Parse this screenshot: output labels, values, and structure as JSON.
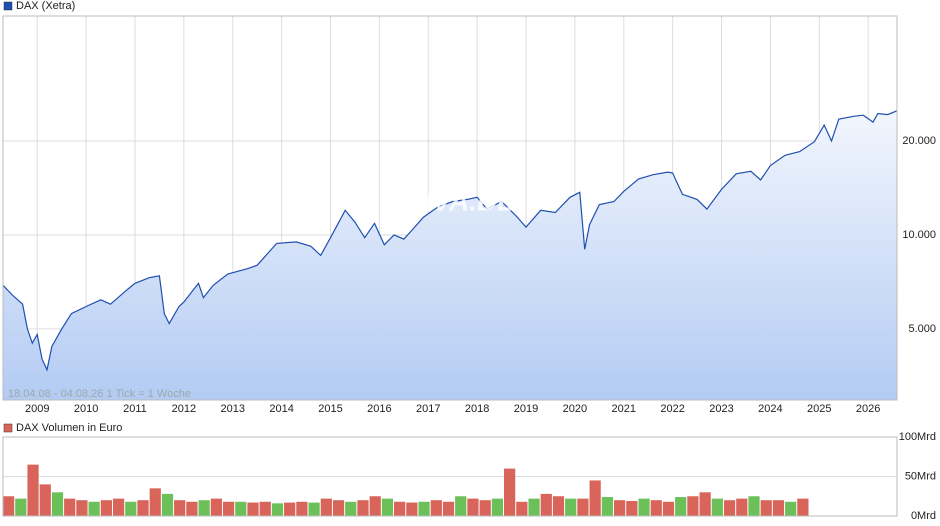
{
  "chart_data": [
    {
      "type": "line",
      "log_scale": true,
      "grid": true,
      "legend": "top-left",
      "annotations": [
        "18.04.08 - 04.08.26   1 Tick = 1 Woche",
        "ARIVA.DE"
      ],
      "series": [
        {
          "name": "DAX (Xetra)",
          "color": "#1f4fb0",
          "x": [
            2008.3,
            2008.5,
            2008.7,
            2008.8,
            2008.9,
            2009.0,
            2009.1,
            2009.2,
            2009.3,
            2009.5,
            2009.7,
            2010.0,
            2010.3,
            2010.5,
            2010.8,
            2011.0,
            2011.3,
            2011.5,
            2011.6,
            2011.7,
            2011.9,
            2012.0,
            2012.3,
            2012.4,
            2012.6,
            2012.9,
            2013.3,
            2013.5,
            2013.9,
            2014.3,
            2014.6,
            2014.8,
            2015.0,
            2015.3,
            2015.5,
            2015.7,
            2015.9,
            2016.1,
            2016.3,
            2016.5,
            2016.7,
            2016.9,
            2017.2,
            2017.5,
            2017.8,
            2018.0,
            2018.2,
            2018.5,
            2018.8,
            2019.0,
            2019.3,
            2019.6,
            2019.9,
            2020.1,
            2020.2,
            2020.3,
            2020.5,
            2020.8,
            2021.0,
            2021.3,
            2021.6,
            2021.9,
            2022.0,
            2022.2,
            2022.5,
            2022.7,
            2023.0,
            2023.3,
            2023.6,
            2023.8,
            2024.0,
            2024.3,
            2024.6,
            2024.9,
            2025.1,
            2025.25,
            2025.4,
            2025.7,
            2025.9,
            2026.1,
            2026.2,
            2026.4,
            2026.59
          ],
          "values": [
            6900,
            6400,
            6000,
            5000,
            4500,
            4800,
            4000,
            3700,
            4400,
            5000,
            5600,
            5900,
            6200,
            6000,
            6600,
            7000,
            7300,
            7400,
            5600,
            5200,
            5900,
            6100,
            7000,
            6300,
            6900,
            7500,
            7800,
            8000,
            9400,
            9500,
            9200,
            8600,
            9800,
            12000,
            11000,
            9800,
            10900,
            9300,
            10000,
            9700,
            10500,
            11400,
            12300,
            12800,
            13000,
            13200,
            12100,
            12800,
            11500,
            10600,
            12000,
            11800,
            13200,
            13700,
            9000,
            10800,
            12500,
            12800,
            13800,
            15100,
            15600,
            15900,
            15800,
            13500,
            13000,
            12100,
            14000,
            15700,
            16000,
            15000,
            16700,
            18000,
            18500,
            19900,
            22500,
            20000,
            23500,
            24000,
            24200,
            23000,
            24500,
            24300,
            25000
          ]
        }
      ],
      "xlim": [
        2008.3,
        2026.59
      ],
      "xticks": [
        2009,
        2010,
        2011,
        2012,
        2013,
        2014,
        2015,
        2016,
        2017,
        2018,
        2019,
        2020,
        2021,
        2022,
        2023,
        2024,
        2025,
        2026
      ],
      "ylim": [
        2960,
        50300
      ],
      "yticks": [
        {
          "value": 5000,
          "label": "5.000"
        },
        {
          "value": 10000,
          "label": "10.000"
        },
        {
          "value": 20000,
          "label": "20.000"
        }
      ]
    },
    {
      "type": "bar",
      "grid": true,
      "legend": "top-left",
      "series": [
        {
          "name": "DAX Volumen in Euro",
          "color": "#d9645a",
          "x": [
            2008.3,
            2008.55,
            2008.8,
            2009.05,
            2009.3,
            2009.55,
            2009.8,
            2010.05,
            2010.3,
            2010.55,
            2010.8,
            2011.05,
            2011.3,
            2011.55,
            2011.8,
            2012.05,
            2012.3,
            2012.55,
            2012.8,
            2013.05,
            2013.3,
            2013.55,
            2013.8,
            2014.05,
            2014.3,
            2014.55,
            2014.8,
            2015.05,
            2015.3,
            2015.55,
            2015.8,
            2016.05,
            2016.3,
            2016.55,
            2016.8,
            2017.05,
            2017.3,
            2017.55,
            2017.8,
            2018.05,
            2018.3,
            2018.55,
            2018.8,
            2019.05,
            2019.3,
            2019.55,
            2019.8,
            2020.05,
            2020.3,
            2020.55,
            2020.8,
            2021.05,
            2021.3,
            2021.55,
            2021.8,
            2022.05,
            2022.3,
            2022.55,
            2022.8,
            2023.05,
            2023.3,
            2023.55,
            2023.8,
            2024.05,
            2024.3,
            2024.55
          ],
          "values": [
            25,
            22,
            65,
            40,
            30,
            22,
            20,
            18,
            20,
            22,
            18,
            20,
            35,
            28,
            20,
            18,
            20,
            22,
            18,
            18,
            17,
            18,
            16,
            17,
            18,
            17,
            22,
            20,
            18,
            20,
            25,
            22,
            18,
            17,
            18,
            20,
            18,
            25,
            22,
            20,
            22,
            60,
            18,
            22,
            28,
            25,
            22,
            22,
            45,
            24,
            20,
            19,
            22,
            20,
            18,
            24,
            25,
            30,
            22,
            20,
            22,
            25,
            20,
            20,
            18,
            22
          ]
        }
      ],
      "xlim": [
        2008.3,
        2026.59
      ],
      "ylim": [
        0,
        100
      ],
      "yticks": [
        {
          "value": 0,
          "label": "0Mrd"
        },
        {
          "value": 50,
          "label": "50Mrd"
        },
        {
          "value": 100,
          "label": "100Mrd"
        }
      ]
    }
  ]
}
